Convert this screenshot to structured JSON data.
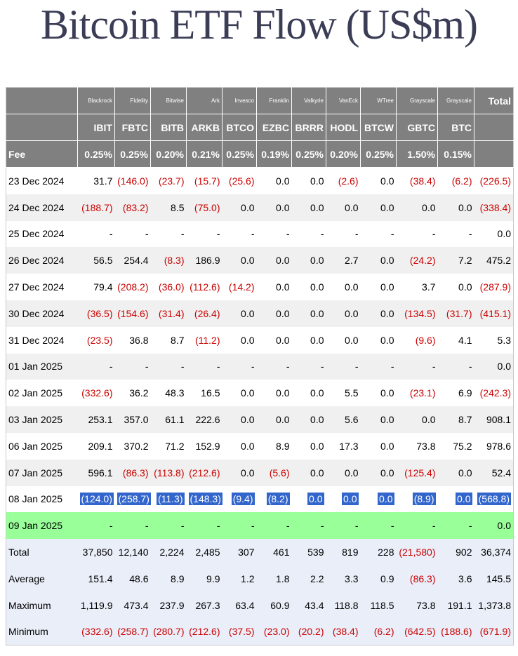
{
  "title": "Bitcoin ETF Flow (US$m)",
  "header": {
    "issuers": [
      "Blackrock",
      "Fidelity",
      "Bitwise",
      "Ark",
      "Invesco",
      "Franklin",
      "Valkyrie",
      "VanEck",
      "WTree",
      "Grayscale",
      "Grayscale"
    ],
    "total_label": "Total",
    "tickers": [
      "IBIT",
      "FBTC",
      "BITB",
      "ARKB",
      "BTCO",
      "EZBC",
      "BRRR",
      "HODL",
      "BTCW",
      "GBTC",
      "BTC"
    ],
    "fee_label": "Fee",
    "fees": [
      "0.25%",
      "0.25%",
      "0.20%",
      "0.21%",
      "0.25%",
      "0.19%",
      "0.25%",
      "0.20%",
      "0.25%",
      "1.50%",
      "0.15%"
    ]
  },
  "rows": [
    {
      "date": "23 Dec 2024",
      "values": [
        "31.7",
        "(146.0)",
        "(23.7)",
        "(15.7)",
        "(25.6)",
        "0.0",
        "0.0",
        "(2.6)",
        "0.0",
        "(38.4)",
        "(6.2)",
        "(226.5)"
      ]
    },
    {
      "date": "24 Dec 2024",
      "values": [
        "(188.7)",
        "(83.2)",
        "8.5",
        "(75.0)",
        "0.0",
        "0.0",
        "0.0",
        "0.0",
        "0.0",
        "0.0",
        "0.0",
        "(338.4)"
      ]
    },
    {
      "date": "25 Dec 2024",
      "values": [
        "-",
        "-",
        "-",
        "-",
        "-",
        "-",
        "-",
        "-",
        "-",
        "-",
        "-",
        "0.0"
      ]
    },
    {
      "date": "26 Dec 2024",
      "values": [
        "56.5",
        "254.4",
        "(8.3)",
        "186.9",
        "0.0",
        "0.0",
        "0.0",
        "2.7",
        "0.0",
        "(24.2)",
        "7.2",
        "475.2"
      ]
    },
    {
      "date": "27 Dec 2024",
      "values": [
        "79.4",
        "(208.2)",
        "(36.0)",
        "(112.6)",
        "(14.2)",
        "0.0",
        "0.0",
        "0.0",
        "0.0",
        "3.7",
        "0.0",
        "(287.9)"
      ]
    },
    {
      "date": "30 Dec 2024",
      "values": [
        "(36.5)",
        "(154.6)",
        "(31.4)",
        "(26.4)",
        "0.0",
        "0.0",
        "0.0",
        "0.0",
        "0.0",
        "(134.5)",
        "(31.7)",
        "(415.1)"
      ]
    },
    {
      "date": "31 Dec 2024",
      "values": [
        "(23.5)",
        "36.8",
        "8.7",
        "(11.2)",
        "0.0",
        "0.0",
        "0.0",
        "0.0",
        "0.0",
        "(9.6)",
        "4.1",
        "5.3"
      ]
    },
    {
      "date": "01 Jan 2025",
      "values": [
        "-",
        "-",
        "-",
        "-",
        "-",
        "-",
        "-",
        "-",
        "-",
        "-",
        "-",
        "0.0"
      ]
    },
    {
      "date": "02 Jan 2025",
      "values": [
        "(332.6)",
        "36.2",
        "48.3",
        "16.5",
        "0.0",
        "0.0",
        "0.0",
        "5.5",
        "0.0",
        "(23.1)",
        "6.9",
        "(242.3)"
      ]
    },
    {
      "date": "03 Jan 2025",
      "values": [
        "253.1",
        "357.0",
        "61.1",
        "222.6",
        "0.0",
        "0.0",
        "0.0",
        "5.6",
        "0.0",
        "0.0",
        "8.7",
        "908.1"
      ]
    },
    {
      "date": "06 Jan 2025",
      "values": [
        "209.1",
        "370.2",
        "71.2",
        "152.9",
        "0.0",
        "8.9",
        "0.0",
        "17.3",
        "0.0",
        "73.8",
        "75.2",
        "978.6"
      ]
    },
    {
      "date": "07 Jan 2025",
      "values": [
        "596.1",
        "(86.3)",
        "(113.8)",
        "(212.6)",
        "0.0",
        "(5.6)",
        "0.0",
        "0.0",
        "0.0",
        "(125.4)",
        "0.0",
        "52.4"
      ]
    },
    {
      "date": "08 Jan 2025",
      "values": [
        "(124.0)",
        "(258.7)",
        "(11.3)",
        "(148.3)",
        "(9.4)",
        "(8.2)",
        "0.0",
        "0.0",
        "0.0",
        "(8.9)",
        "0.0",
        "(568.8)"
      ],
      "selected": true
    },
    {
      "date": "09 Jan 2025",
      "values": [
        "-",
        "-",
        "-",
        "-",
        "-",
        "-",
        "-",
        "-",
        "-",
        "-",
        "-",
        "0.0"
      ],
      "highlight": true
    }
  ],
  "summary": [
    {
      "label": "Total",
      "values": [
        "37,850",
        "12,140",
        "2,224",
        "2,485",
        "307",
        "461",
        "539",
        "819",
        "228",
        "(21,580)",
        "902",
        "36,374"
      ]
    },
    {
      "label": "Average",
      "values": [
        "151.4",
        "48.6",
        "8.9",
        "9.9",
        "1.2",
        "1.8",
        "2.2",
        "3.3",
        "0.9",
        "(86.3)",
        "3.6",
        "145.5"
      ]
    },
    {
      "label": "Maximum",
      "values": [
        "1,119.9",
        "473.4",
        "237.9",
        "267.3",
        "63.4",
        "60.9",
        "43.4",
        "118.8",
        "118.5",
        "73.8",
        "191.1",
        "1,373.8"
      ]
    },
    {
      "label": "Minimum",
      "values": [
        "(332.6)",
        "(258.7)",
        "(280.7)",
        "(212.6)",
        "(37.5)",
        "(23.0)",
        "(20.2)",
        "(38.4)",
        "(6.2)",
        "(642.5)",
        "(188.6)",
        "(671.9)"
      ]
    }
  ],
  "colors": {
    "header_bg": "#808080",
    "negative": "#cc0000",
    "selected_cell": "#3366cc",
    "highlight_row": "#99ff99",
    "summary_bg": "#e9eef8",
    "title": "#3a3d55"
  }
}
